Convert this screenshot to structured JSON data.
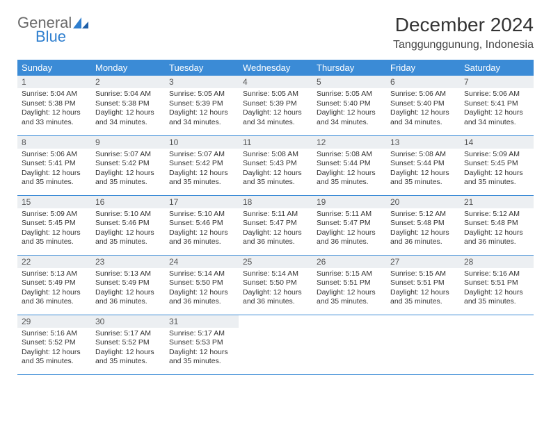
{
  "logo": {
    "word1": "General",
    "word2": "Blue"
  },
  "title": "December 2024",
  "location": "Tanggunggunung, Indonesia",
  "colors": {
    "header_bg": "#3b8bd6",
    "header_fg": "#ffffff",
    "daynum_bg": "#eceff2",
    "row_border": "#3b8bd6",
    "logo_gray": "#6a6a6a",
    "logo_blue": "#2f7fcf"
  },
  "day_names": [
    "Sunday",
    "Monday",
    "Tuesday",
    "Wednesday",
    "Thursday",
    "Friday",
    "Saturday"
  ],
  "labels": {
    "sunrise": "Sunrise:",
    "sunset": "Sunset:",
    "daylight": "Daylight:"
  },
  "weeks": [
    [
      {
        "n": "1",
        "sr": "5:04 AM",
        "ss": "5:38 PM",
        "dl": "12 hours and 33 minutes."
      },
      {
        "n": "2",
        "sr": "5:04 AM",
        "ss": "5:38 PM",
        "dl": "12 hours and 34 minutes."
      },
      {
        "n": "3",
        "sr": "5:05 AM",
        "ss": "5:39 PM",
        "dl": "12 hours and 34 minutes."
      },
      {
        "n": "4",
        "sr": "5:05 AM",
        "ss": "5:39 PM",
        "dl": "12 hours and 34 minutes."
      },
      {
        "n": "5",
        "sr": "5:05 AM",
        "ss": "5:40 PM",
        "dl": "12 hours and 34 minutes."
      },
      {
        "n": "6",
        "sr": "5:06 AM",
        "ss": "5:40 PM",
        "dl": "12 hours and 34 minutes."
      },
      {
        "n": "7",
        "sr": "5:06 AM",
        "ss": "5:41 PM",
        "dl": "12 hours and 34 minutes."
      }
    ],
    [
      {
        "n": "8",
        "sr": "5:06 AM",
        "ss": "5:41 PM",
        "dl": "12 hours and 35 minutes."
      },
      {
        "n": "9",
        "sr": "5:07 AM",
        "ss": "5:42 PM",
        "dl": "12 hours and 35 minutes."
      },
      {
        "n": "10",
        "sr": "5:07 AM",
        "ss": "5:42 PM",
        "dl": "12 hours and 35 minutes."
      },
      {
        "n": "11",
        "sr": "5:08 AM",
        "ss": "5:43 PM",
        "dl": "12 hours and 35 minutes."
      },
      {
        "n": "12",
        "sr": "5:08 AM",
        "ss": "5:44 PM",
        "dl": "12 hours and 35 minutes."
      },
      {
        "n": "13",
        "sr": "5:08 AM",
        "ss": "5:44 PM",
        "dl": "12 hours and 35 minutes."
      },
      {
        "n": "14",
        "sr": "5:09 AM",
        "ss": "5:45 PM",
        "dl": "12 hours and 35 minutes."
      }
    ],
    [
      {
        "n": "15",
        "sr": "5:09 AM",
        "ss": "5:45 PM",
        "dl": "12 hours and 35 minutes."
      },
      {
        "n": "16",
        "sr": "5:10 AM",
        "ss": "5:46 PM",
        "dl": "12 hours and 35 minutes."
      },
      {
        "n": "17",
        "sr": "5:10 AM",
        "ss": "5:46 PM",
        "dl": "12 hours and 36 minutes."
      },
      {
        "n": "18",
        "sr": "5:11 AM",
        "ss": "5:47 PM",
        "dl": "12 hours and 36 minutes."
      },
      {
        "n": "19",
        "sr": "5:11 AM",
        "ss": "5:47 PM",
        "dl": "12 hours and 36 minutes."
      },
      {
        "n": "20",
        "sr": "5:12 AM",
        "ss": "5:48 PM",
        "dl": "12 hours and 36 minutes."
      },
      {
        "n": "21",
        "sr": "5:12 AM",
        "ss": "5:48 PM",
        "dl": "12 hours and 36 minutes."
      }
    ],
    [
      {
        "n": "22",
        "sr": "5:13 AM",
        "ss": "5:49 PM",
        "dl": "12 hours and 36 minutes."
      },
      {
        "n": "23",
        "sr": "5:13 AM",
        "ss": "5:49 PM",
        "dl": "12 hours and 36 minutes."
      },
      {
        "n": "24",
        "sr": "5:14 AM",
        "ss": "5:50 PM",
        "dl": "12 hours and 36 minutes."
      },
      {
        "n": "25",
        "sr": "5:14 AM",
        "ss": "5:50 PM",
        "dl": "12 hours and 36 minutes."
      },
      {
        "n": "26",
        "sr": "5:15 AM",
        "ss": "5:51 PM",
        "dl": "12 hours and 35 minutes."
      },
      {
        "n": "27",
        "sr": "5:15 AM",
        "ss": "5:51 PM",
        "dl": "12 hours and 35 minutes."
      },
      {
        "n": "28",
        "sr": "5:16 AM",
        "ss": "5:51 PM",
        "dl": "12 hours and 35 minutes."
      }
    ],
    [
      {
        "n": "29",
        "sr": "5:16 AM",
        "ss": "5:52 PM",
        "dl": "12 hours and 35 minutes."
      },
      {
        "n": "30",
        "sr": "5:17 AM",
        "ss": "5:52 PM",
        "dl": "12 hours and 35 minutes."
      },
      {
        "n": "31",
        "sr": "5:17 AM",
        "ss": "5:53 PM",
        "dl": "12 hours and 35 minutes."
      },
      null,
      null,
      null,
      null
    ]
  ]
}
